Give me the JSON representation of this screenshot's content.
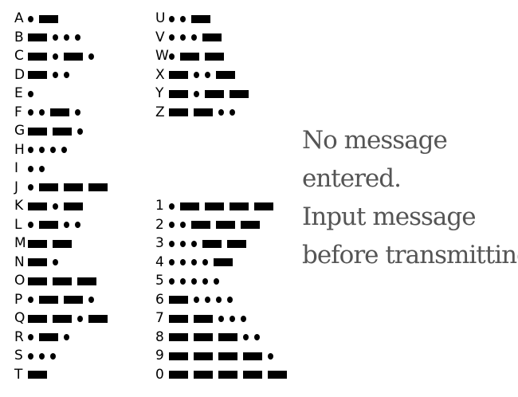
{
  "morse_chart": {
    "letters_left": [
      {
        "char": "A",
        "code": ".-"
      },
      {
        "char": "B",
        "code": "-..."
      },
      {
        "char": "C",
        "code": "-.-."
      },
      {
        "char": "D",
        "code": "-.."
      },
      {
        "char": "E",
        "code": "."
      },
      {
        "char": "F",
        "code": "..-."
      },
      {
        "char": "G",
        "code": "--."
      },
      {
        "char": "H",
        "code": "...."
      },
      {
        "char": "I",
        "code": ".."
      },
      {
        "char": "J",
        "code": ".---"
      },
      {
        "char": "K",
        "code": "-.-"
      },
      {
        "char": "L",
        "code": ".-.."
      },
      {
        "char": "M",
        "code": "--"
      },
      {
        "char": "N",
        "code": "-."
      },
      {
        "char": "O",
        "code": "---"
      },
      {
        "char": "P",
        "code": ".--."
      },
      {
        "char": "Q",
        "code": "--.-"
      },
      {
        "char": "R",
        "code": ".-."
      },
      {
        "char": "S",
        "code": "..."
      },
      {
        "char": "T",
        "code": "-"
      }
    ],
    "letters_right": [
      {
        "char": "U",
        "code": "..-"
      },
      {
        "char": "V",
        "code": "...-"
      },
      {
        "char": "W",
        "code": ".--"
      },
      {
        "char": "X",
        "code": "-..-"
      },
      {
        "char": "Y",
        "code": "-.--"
      },
      {
        "char": "Z",
        "code": "--.."
      }
    ],
    "digits": [
      {
        "char": "1",
        "code": ".----"
      },
      {
        "char": "2",
        "code": "..---"
      },
      {
        "char": "3",
        "code": "...--"
      },
      {
        "char": "4",
        "code": "....-"
      },
      {
        "char": "5",
        "code": "....."
      },
      {
        "char": "6",
        "code": "-...."
      },
      {
        "char": "7",
        "code": "--..."
      },
      {
        "char": "8",
        "code": "---.."
      },
      {
        "char": "9",
        "code": "----."
      },
      {
        "char": "0",
        "code": "-----"
      }
    ]
  },
  "status": {
    "line1": "No message",
    "line2": "entered.",
    "line3": "Input message",
    "line4": "before transmitting."
  }
}
